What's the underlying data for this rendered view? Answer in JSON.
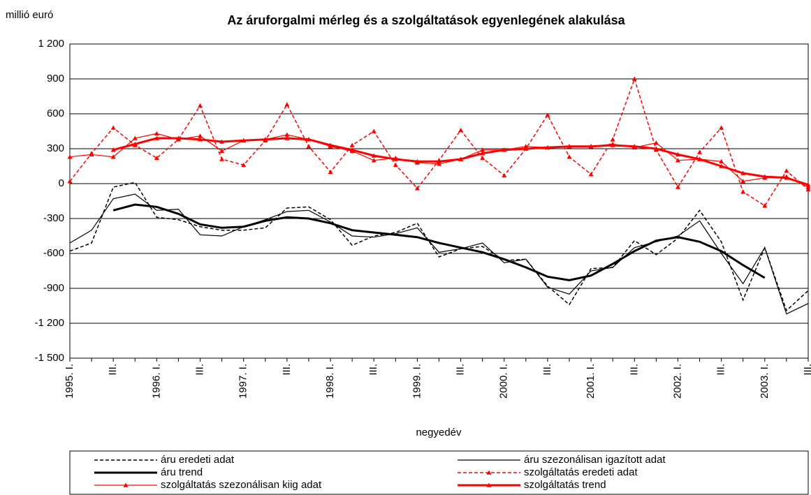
{
  "chart_data": {
    "type": "line",
    "title": "Az áruforgalmi mérleg és a szolgáltatások egyenlegének alakulása",
    "y_label": "millió euró",
    "x_label": "negyedév",
    "categories": [
      "1995. I.",
      null,
      "III.",
      null,
      "1996. I.",
      null,
      "III.",
      null,
      "1997. I.",
      null,
      "III.",
      null,
      "1998. I.",
      null,
      "III.",
      null,
      "1999. I.",
      null,
      "III.",
      null,
      "2000. I.",
      null,
      "III.",
      null,
      "2001. I.",
      null,
      "III.",
      null,
      "2002. I.",
      null,
      "III.",
      null,
      "2003. I.",
      null,
      "III."
    ],
    "ylim": [
      -1500,
      1200
    ],
    "yticks": [
      {
        "value": -1500,
        "label": "-1 500"
      },
      {
        "value": -1200,
        "label": "-1 200"
      },
      -900,
      -600,
      -300,
      0,
      300,
      600,
      900,
      {
        "value": 1200,
        "label": "1 200"
      }
    ],
    "grid": true,
    "series": [
      {
        "name": "áru eredeti adat",
        "color": "#000000",
        "style": "dashed",
        "width": 1.5,
        "values": [
          -580,
          -510,
          -30,
          10,
          -290,
          -310,
          -370,
          -400,
          -400,
          -380,
          -210,
          -200,
          -310,
          -530,
          -450,
          -420,
          -340,
          -630,
          -560,
          -540,
          -660,
          -650,
          -880,
          -1040,
          -730,
          -720,
          -490,
          -610,
          -470,
          -230,
          -500,
          -1000,
          -550,
          -1090,
          -920
        ]
      },
      {
        "name": "áru szezonálisan igazított adat",
        "color": "#000000",
        "style": "solid",
        "width": 1.2,
        "values": [
          -510,
          -400,
          -130,
          -90,
          -230,
          -220,
          -440,
          -450,
          -370,
          -310,
          -240,
          -230,
          -330,
          -450,
          -460,
          -430,
          -380,
          -590,
          -560,
          -510,
          -680,
          -650,
          -890,
          -950,
          -750,
          -720,
          -550,
          -500,
          -450,
          -320,
          -600,
          -860,
          -550,
          -1120,
          -1030
        ]
      },
      {
        "name": "áru trend",
        "color": "#000000",
        "style": "solid",
        "width": 3,
        "values": [
          null,
          null,
          -230,
          -180,
          -200,
          -260,
          -350,
          -380,
          -370,
          -320,
          -290,
          -300,
          -340,
          -400,
          -420,
          -440,
          -460,
          -510,
          -550,
          -590,
          -650,
          -720,
          -800,
          -830,
          -790,
          -690,
          -580,
          -490,
          -460,
          -500,
          -580,
          -700,
          -810,
          null,
          null
        ]
      },
      {
        "name": "szolgáltatás eredeti adat",
        "color": "#ff0000",
        "style": "dashed",
        "width": 1.5,
        "marker": "triangle",
        "values": [
          20,
          260,
          480,
          330,
          220,
          380,
          670,
          210,
          160,
          370,
          680,
          320,
          100,
          330,
          450,
          160,
          -40,
          200,
          460,
          220,
          70,
          300,
          590,
          230,
          80,
          380,
          900,
          290,
          -30,
          270,
          480,
          -70,
          -190,
          110,
          -50
        ]
      },
      {
        "name": "szolgáltatás szezonálisan kiig adat",
        "color": "#ff0000",
        "style": "solid",
        "width": 1.2,
        "marker": "triangle",
        "values": [
          230,
          250,
          230,
          390,
          430,
          380,
          410,
          280,
          370,
          380,
          420,
          380,
          320,
          280,
          200,
          220,
          180,
          170,
          210,
          290,
          290,
          320,
          310,
          320,
          320,
          340,
          310,
          350,
          200,
          210,
          190,
          20,
          50,
          60,
          -30
        ]
      },
      {
        "name": "szolgáltatás trend",
        "color": "#ff0000",
        "style": "solid",
        "width": 3,
        "marker": "triangle",
        "values": [
          null,
          null,
          290,
          340,
          390,
          390,
          380,
          360,
          370,
          380,
          390,
          380,
          330,
          290,
          240,
          210,
          190,
          190,
          210,
          260,
          290,
          300,
          310,
          320,
          320,
          330,
          320,
          300,
          250,
          210,
          150,
          90,
          60,
          50,
          -10
        ]
      }
    ]
  }
}
